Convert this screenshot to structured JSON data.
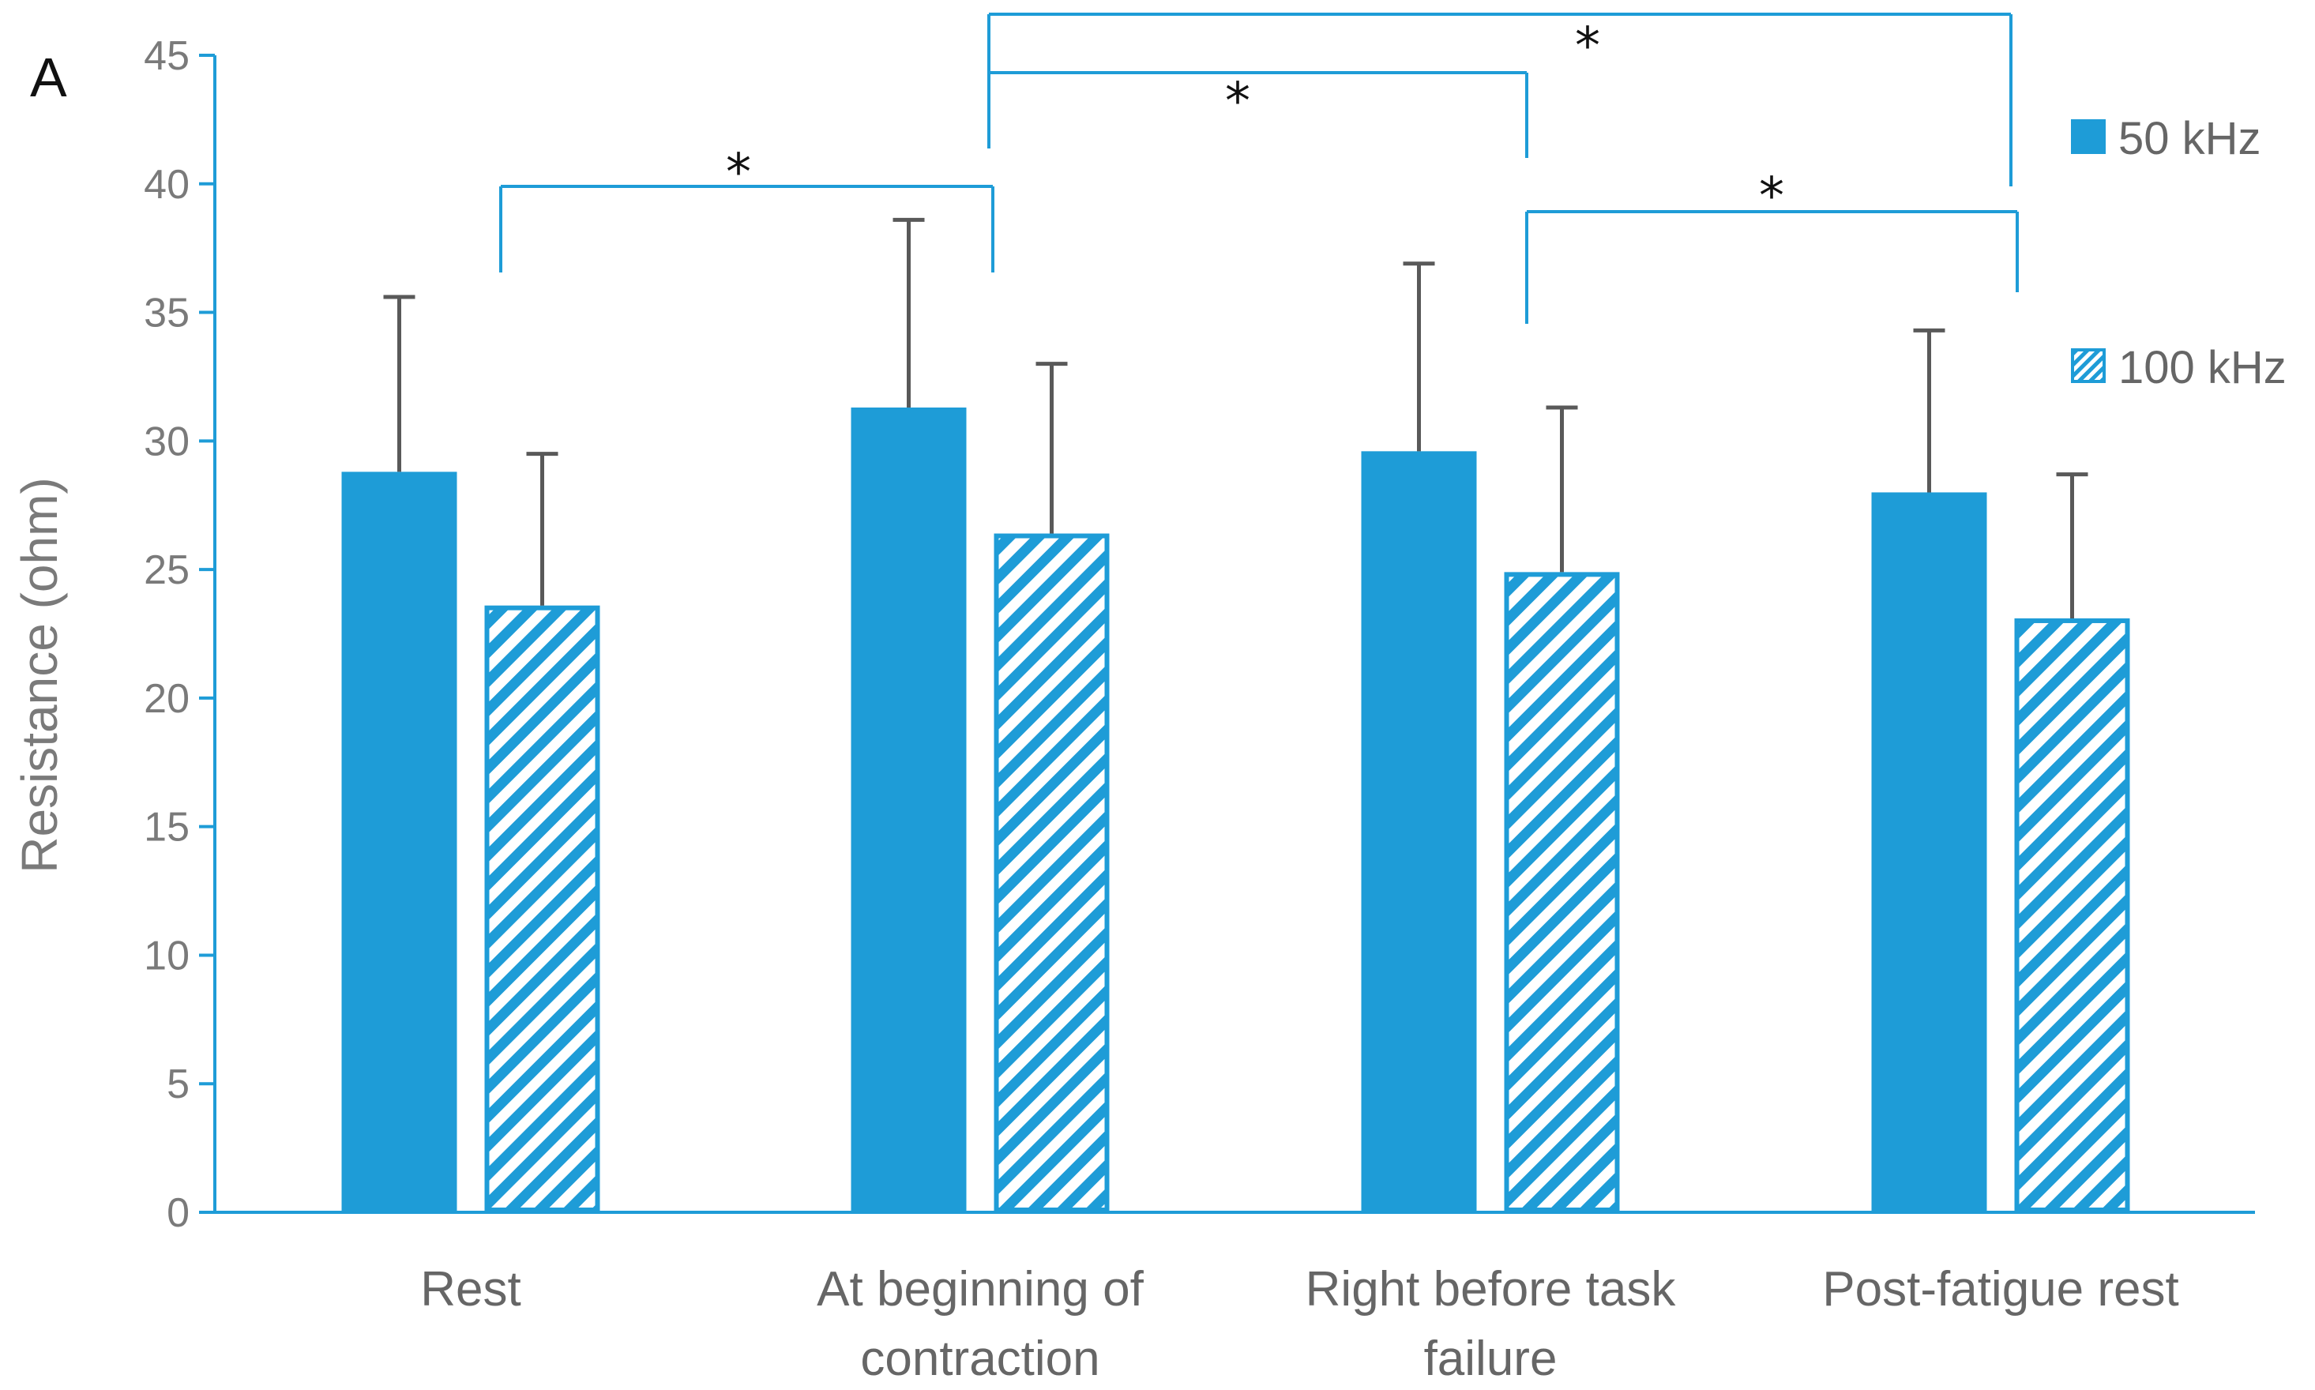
{
  "panel_label": "A",
  "colors": {
    "accent": "#1e9cd7",
    "error_bar": "#595959",
    "axis": "#1e9cd7"
  },
  "chart_data": {
    "type": "bar",
    "ylabel": "Resistance (ohm)",
    "ylim": [
      0,
      45
    ],
    "yticks": [
      0,
      5,
      10,
      15,
      20,
      25,
      30,
      35,
      40,
      45
    ],
    "grid": false,
    "legend_position": "right",
    "categories": [
      [
        "Rest"
      ],
      [
        "At beginning of",
        "contraction"
      ],
      [
        "Right before task",
        "failure"
      ],
      [
        "Post-fatigue rest"
      ]
    ],
    "series": [
      {
        "name": "50 kHz",
        "pattern": "solid",
        "values": [
          28.8,
          31.3,
          29.6,
          28.0
        ],
        "errors": [
          6.8,
          7.3,
          7.3,
          6.3
        ]
      },
      {
        "name": "100 kHz",
        "pattern": "hatched",
        "values": [
          23.6,
          26.4,
          24.9,
          23.1
        ],
        "errors": [
          5.9,
          6.6,
          6.4,
          5.6
        ]
      }
    ],
    "significance": [
      {
        "from_category": 0,
        "to_category": 1,
        "label": "*"
      },
      {
        "from_category": 1,
        "to_category": 2,
        "label": "*"
      },
      {
        "from_category": 1,
        "to_category": 3,
        "label": "*"
      },
      {
        "from_category": 2,
        "to_category": 3,
        "label": "*"
      }
    ]
  }
}
